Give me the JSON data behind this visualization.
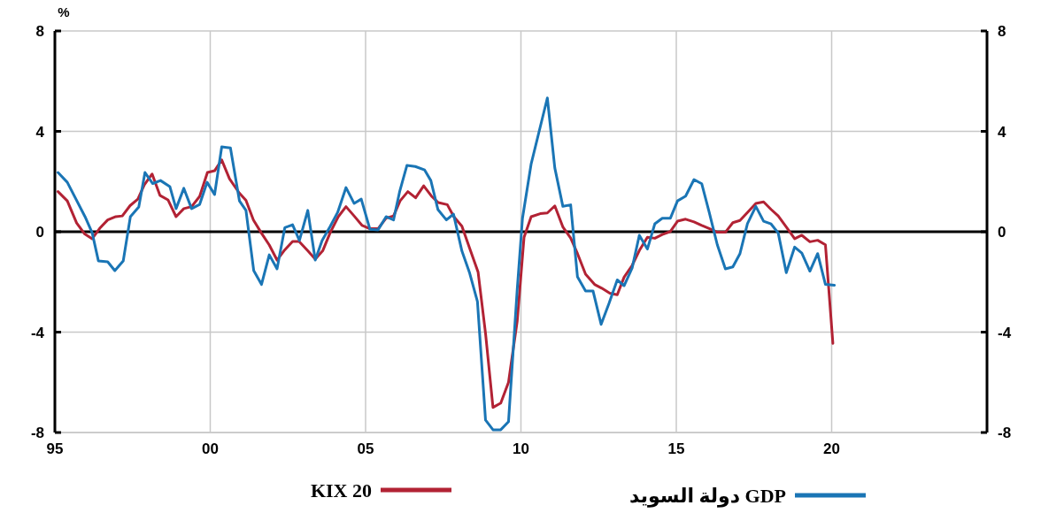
{
  "chart_data": {
    "type": "line",
    "ylabel": "%",
    "series": [
      {
        "name": "KIX 20",
        "color": "#b22234",
        "x": [
          1995.1,
          1995.4,
          1995.7,
          1995.96,
          1996.2,
          1996.46,
          1996.7,
          1996.96,
          1997.17,
          1997.42,
          1997.67,
          1997.88,
          1998.13,
          1998.38,
          1998.64,
          1998.9,
          1999.15,
          1999.4,
          1999.66,
          1999.91,
          2000.14,
          2000.37,
          2000.62,
          2000.93,
          2001.15,
          2001.39,
          2001.64,
          2001.9,
          2002.15,
          2002.4,
          2002.65,
          2002.86,
          2003.14,
          2003.38,
          2003.62,
          2003.86,
          2004.12,
          2004.37,
          2004.63,
          2004.89,
          2005.14,
          2005.4,
          2005.66,
          2005.9,
          2006.11,
          2006.36,
          2006.61,
          2006.87,
          2007.12,
          2007.34,
          2007.63,
          2007.84,
          2008.1,
          2008.35,
          2008.62,
          2008.86,
          2009.1,
          2009.35,
          2009.6,
          2009.88,
          2010.1,
          2010.33,
          2010.62,
          2010.85,
          2011.09,
          2011.35,
          2011.6,
          2011.82,
          2012.08,
          2012.37,
          2012.6,
          2012.86,
          2013.1,
          2013.32,
          2013.58,
          2013.81,
          2014.07,
          2014.31,
          2014.55,
          2014.81,
          2015.04,
          2015.3,
          2015.57,
          2015.82,
          2016.06,
          2016.32,
          2016.58,
          2016.82,
          2017.05,
          2017.29,
          2017.56,
          2017.81,
          2018.05,
          2018.28,
          2018.54,
          2018.81,
          2019.04,
          2019.3,
          2019.55,
          2019.8,
          2020.04
        ],
        "values": [
          1.6,
          1.23,
          0.35,
          -0.09,
          -0.28,
          0.16,
          0.47,
          0.6,
          0.63,
          1.04,
          1.3,
          1.87,
          2.3,
          1.45,
          1.27,
          0.6,
          0.92,
          1.0,
          1.41,
          2.36,
          2.43,
          2.86,
          2.11,
          1.55,
          1.25,
          0.47,
          -0.04,
          -0.53,
          -1.13,
          -0.72,
          -0.39,
          -0.39,
          -0.76,
          -1.09,
          -0.76,
          -0.04,
          0.6,
          1.0,
          0.63,
          0.25,
          0.12,
          0.12,
          0.54,
          0.63,
          1.23,
          1.6,
          1.35,
          1.83,
          1.42,
          1.16,
          1.08,
          0.6,
          0.22,
          -0.66,
          -1.6,
          -4.05,
          -7.0,
          -6.83,
          -6.0,
          -3.56,
          -0.22,
          0.6,
          0.72,
          0.75,
          1.03,
          0.19,
          -0.25,
          -0.87,
          -1.69,
          -2.1,
          -2.25,
          -2.45,
          -2.51,
          -1.81,
          -1.34,
          -0.75,
          -0.22,
          -0.26,
          -0.11,
          0.01,
          0.42,
          0.5,
          0.39,
          0.25,
          0.13,
          -0.02,
          -0.02,
          0.36,
          0.45,
          0.77,
          1.13,
          1.19,
          0.89,
          0.63,
          0.19,
          -0.28,
          -0.14,
          -0.4,
          -0.34,
          -0.52,
          -4.45
        ]
      },
      {
        "name": "GDP دولة السويد",
        "color": "#1a75b5",
        "x": [
          1995.1,
          1995.4,
          1995.97,
          1996.2,
          1996.4,
          1996.7,
          1996.93,
          1997.2,
          1997.43,
          1997.7,
          1997.9,
          1998.15,
          1998.4,
          1998.7,
          1998.9,
          1999.15,
          1999.4,
          1999.66,
          1999.9,
          2000.14,
          2000.37,
          2000.65,
          2000.94,
          2001.15,
          2001.4,
          2001.65,
          2001.9,
          2002.15,
          2002.4,
          2002.65,
          2002.87,
          2003.14,
          2003.38,
          2003.6,
          2003.86,
          2004.1,
          2004.37,
          2004.63,
          2004.86,
          2005.14,
          2005.4,
          2005.66,
          2005.9,
          2006.1,
          2006.33,
          2006.6,
          2006.9,
          2007.1,
          2007.33,
          2007.6,
          2007.83,
          2008.1,
          2008.35,
          2008.6,
          2008.86,
          2009.1,
          2009.35,
          2009.6,
          2009.88,
          2010.05,
          2010.33,
          2010.85,
          2011.09,
          2011.35,
          2011.6,
          2011.82,
          2012.08,
          2012.32,
          2012.58,
          2012.84,
          2013.1,
          2013.32,
          2013.58,
          2013.81,
          2014.07,
          2014.31,
          2014.55,
          2014.81,
          2015.04,
          2015.3,
          2015.57,
          2015.82,
          2016.06,
          2016.32,
          2016.58,
          2016.82,
          2017.05,
          2017.29,
          2017.56,
          2017.81,
          2018.05,
          2018.28,
          2018.54,
          2018.81,
          2019.04,
          2019.3,
          2019.55,
          2019.8,
          2020.09
        ],
        "values": [
          2.36,
          1.97,
          0.6,
          -0.04,
          -1.16,
          -1.2,
          -1.55,
          -1.16,
          0.6,
          0.99,
          2.36,
          1.92,
          2.04,
          1.8,
          0.92,
          1.73,
          0.92,
          1.09,
          1.97,
          1.48,
          3.38,
          3.34,
          1.23,
          0.85,
          -1.55,
          -2.1,
          -0.92,
          -1.48,
          0.16,
          0.28,
          -0.35,
          0.85,
          -1.13,
          -0.35,
          0.21,
          0.77,
          1.76,
          1.13,
          1.3,
          0.1,
          0.07,
          0.6,
          0.47,
          1.62,
          2.64,
          2.6,
          2.46,
          2.04,
          0.88,
          0.47,
          0.7,
          -0.77,
          -1.65,
          -2.78,
          -7.5,
          -7.89,
          -7.89,
          -7.57,
          -2.29,
          0.54,
          2.71,
          5.33,
          2.54,
          1.01,
          1.07,
          -1.8,
          -2.36,
          -2.36,
          -3.69,
          -2.84,
          -1.92,
          -2.15,
          -1.44,
          -0.14,
          -0.69,
          0.32,
          0.54,
          0.54,
          1.23,
          1.42,
          2.08,
          1.91,
          0.77,
          -0.52,
          -1.48,
          -1.4,
          -0.87,
          0.32,
          1.01,
          0.42,
          0.31,
          -0.05,
          -1.63,
          -0.61,
          -0.85,
          -1.57,
          -0.87,
          -2.1,
          -2.13
        ]
      }
    ],
    "xlim": [
      1995,
      2025
    ],
    "xticks": [
      {
        "value": 1995,
        "label": "95"
      },
      {
        "value": 2000,
        "label": "00"
      },
      {
        "value": 2005,
        "label": "05"
      },
      {
        "value": 2010,
        "label": "10"
      },
      {
        "value": 2015,
        "label": "15"
      },
      {
        "value": 2020,
        "label": "20"
      }
    ],
    "ylim": [
      -8,
      8
    ],
    "yticks": [
      -8,
      -4,
      0,
      4,
      8
    ],
    "y2lim": [
      -8,
      8
    ],
    "y2ticks": [
      -8,
      -4,
      0,
      4,
      8
    ],
    "ref_lines": [
      {
        "axis": "y",
        "value": 0
      }
    ],
    "grid": true,
    "legend": "bottom",
    "marker": "none",
    "line_style": "solid"
  }
}
